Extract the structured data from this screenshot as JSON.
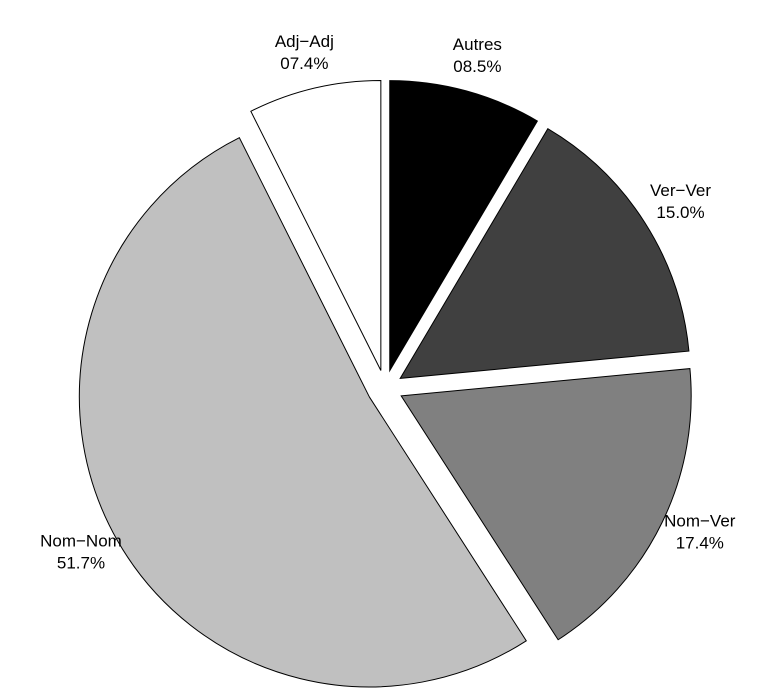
{
  "chart_data": {
    "type": "pie",
    "categories": [
      "Autres",
      "Ver−Ver",
      "Nom−Ver",
      "Nom−Nom",
      "Adj−Adj"
    ],
    "values": [
      8.5,
      15.0,
      17.4,
      51.7,
      7.4
    ],
    "value_labels": [
      "08.5%",
      "15.0%",
      "17.4%",
      "51.7%",
      "07.4%"
    ],
    "colors": [
      "#000000",
      "#404040",
      "#808080",
      "#c0c0c0",
      "#ffffff"
    ]
  }
}
